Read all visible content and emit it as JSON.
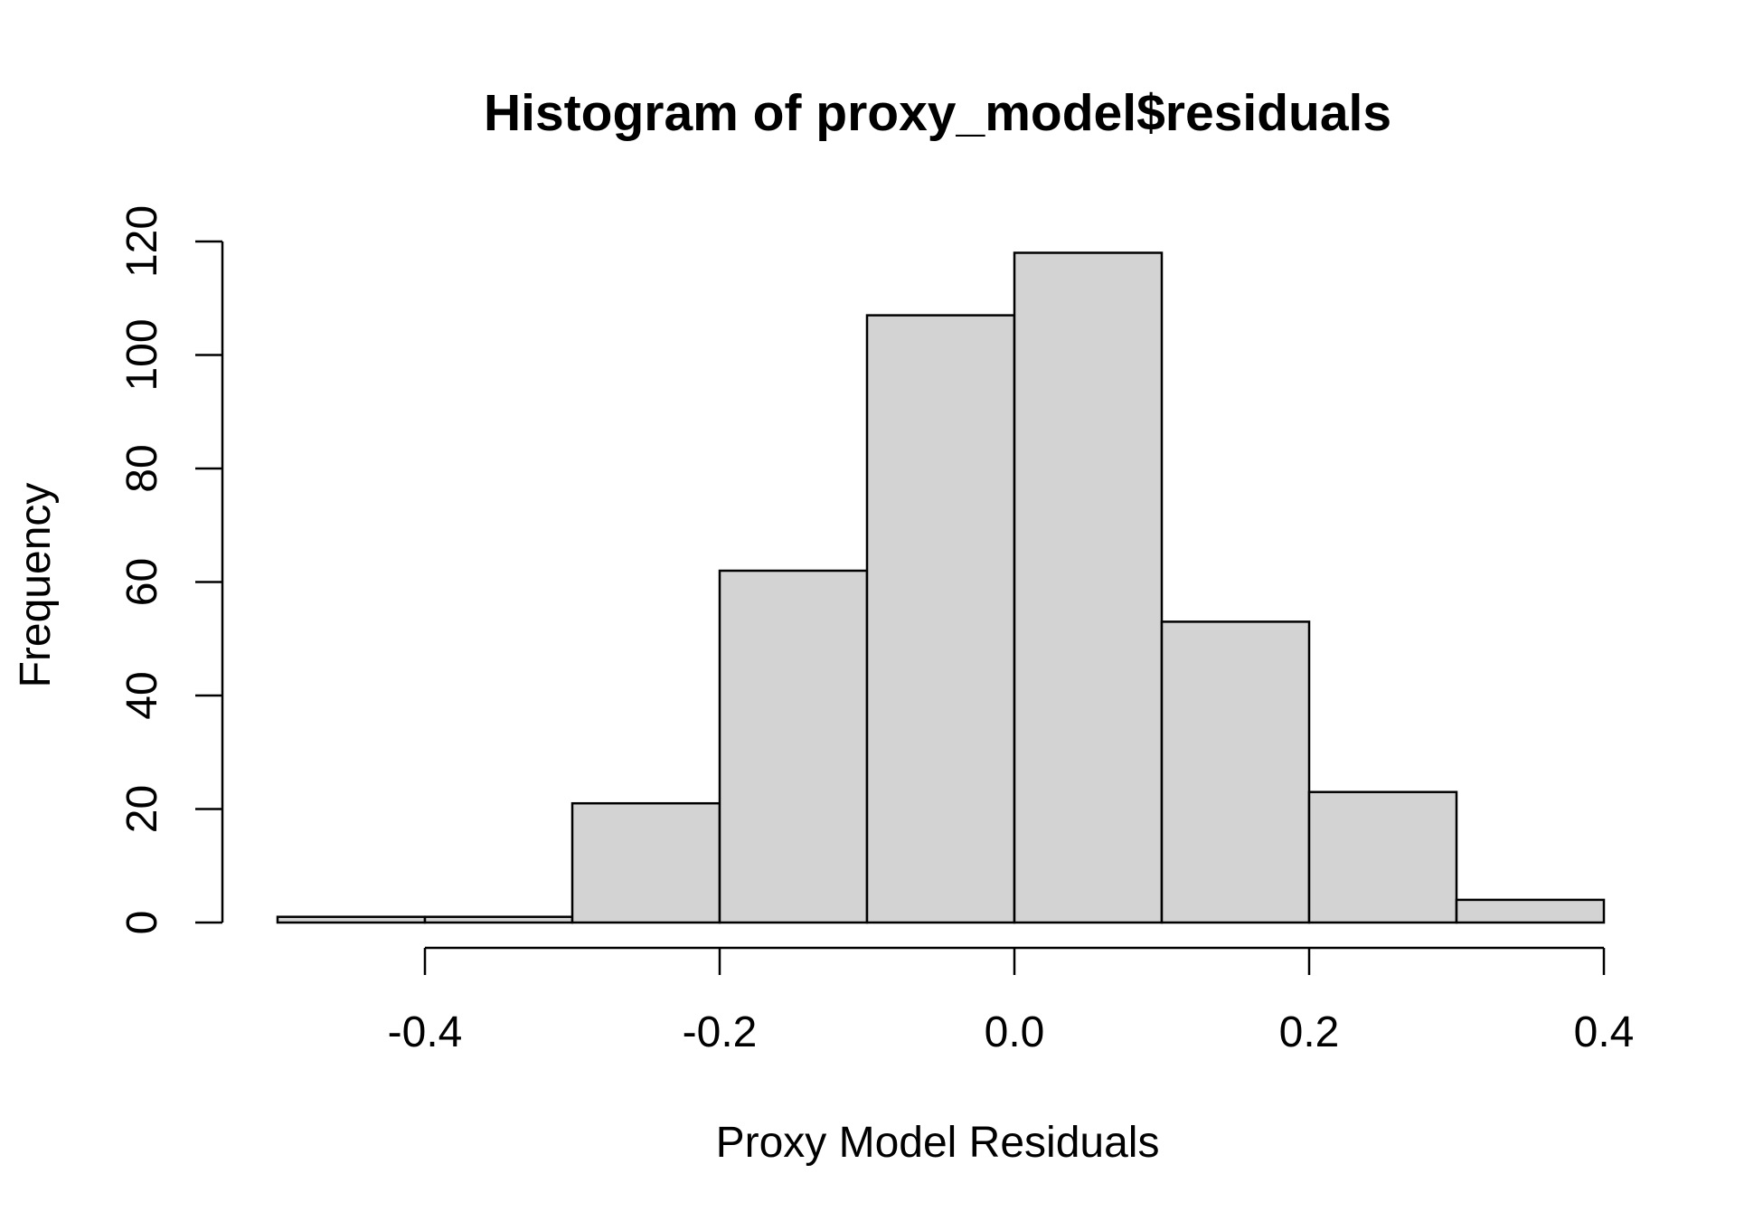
{
  "chart_data": {
    "type": "bar",
    "title": "Histogram of proxy_model$residuals",
    "xlabel": "Proxy Model Residuals",
    "ylabel": "Frequency",
    "bins": [
      {
        "from": -0.5,
        "to": -0.4,
        "count": 1
      },
      {
        "from": -0.4,
        "to": -0.3,
        "count": 1
      },
      {
        "from": -0.3,
        "to": -0.2,
        "count": 21
      },
      {
        "from": -0.2,
        "to": -0.1,
        "count": 62
      },
      {
        "from": -0.1,
        "to": 0.0,
        "count": 107
      },
      {
        "from": 0.0,
        "to": 0.1,
        "count": 118
      },
      {
        "from": 0.1,
        "to": 0.2,
        "count": 53
      },
      {
        "from": 0.2,
        "to": 0.3,
        "count": 23
      },
      {
        "from": 0.3,
        "to": 0.4,
        "count": 4
      }
    ],
    "xlim": [
      -0.5,
      0.4
    ],
    "ylim": [
      0,
      120
    ],
    "x_ticks": [
      {
        "value": -0.4,
        "label": "-0.4"
      },
      {
        "value": -0.2,
        "label": "-0.2"
      },
      {
        "value": 0.0,
        "label": "0.0"
      },
      {
        "value": 0.2,
        "label": "0.2"
      },
      {
        "value": 0.4,
        "label": "0.4"
      }
    ],
    "y_ticks": [
      {
        "value": 0,
        "label": "0"
      },
      {
        "value": 20,
        "label": "20"
      },
      {
        "value": 40,
        "label": "40"
      },
      {
        "value": 60,
        "label": "60"
      },
      {
        "value": 80,
        "label": "80"
      },
      {
        "value": 100,
        "label": "100"
      },
      {
        "value": 120,
        "label": "120"
      }
    ],
    "grid": false,
    "legend": "none",
    "colors": {
      "bar_fill": "#d3d3d3",
      "bar_stroke": "#000000",
      "axis": "#000000",
      "background": "#ffffff"
    }
  }
}
